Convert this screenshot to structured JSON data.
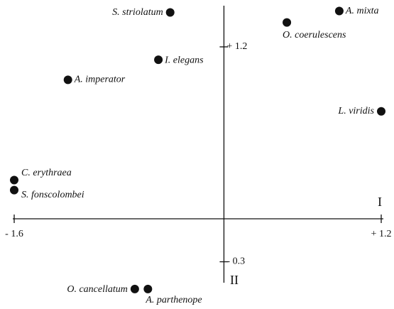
{
  "chart_data": {
    "type": "scatter",
    "x_axis_label": "I",
    "y_axis_label": "II",
    "series": [
      {
        "name": null,
        "color": "#111111",
        "labels": [
          "S. striolatum",
          "A. mixta",
          "O. coerulescens",
          "I. elegans",
          "A. imperator",
          "L. viridis",
          "C. erythraea",
          "S. fonscolombei",
          "O. cancellatum",
          "A. parthenope"
        ],
        "x": [
          -0.41,
          0.88,
          0.48,
          -0.5,
          -1.19,
          1.2,
          -1.6,
          -1.6,
          -0.68,
          -0.58
        ],
        "values": [
          1.44,
          1.45,
          1.37,
          1.11,
          0.97,
          0.75,
          0.27,
          0.2,
          -0.49,
          -0.49
        ]
      }
    ],
    "xlim": [
      -1.6,
      1.2
    ],
    "ylim": [
      -0.5,
      1.5
    ],
    "xticks": [
      {
        "value": -1.6,
        "label": "- 1.6"
      },
      {
        "value": 1.2,
        "label": "+ 1.2"
      }
    ],
    "yticks": [
      {
        "value": 1.2,
        "label": "+ 1.2"
      },
      {
        "value": -0.3,
        "label": "- 0.3"
      }
    ]
  }
}
